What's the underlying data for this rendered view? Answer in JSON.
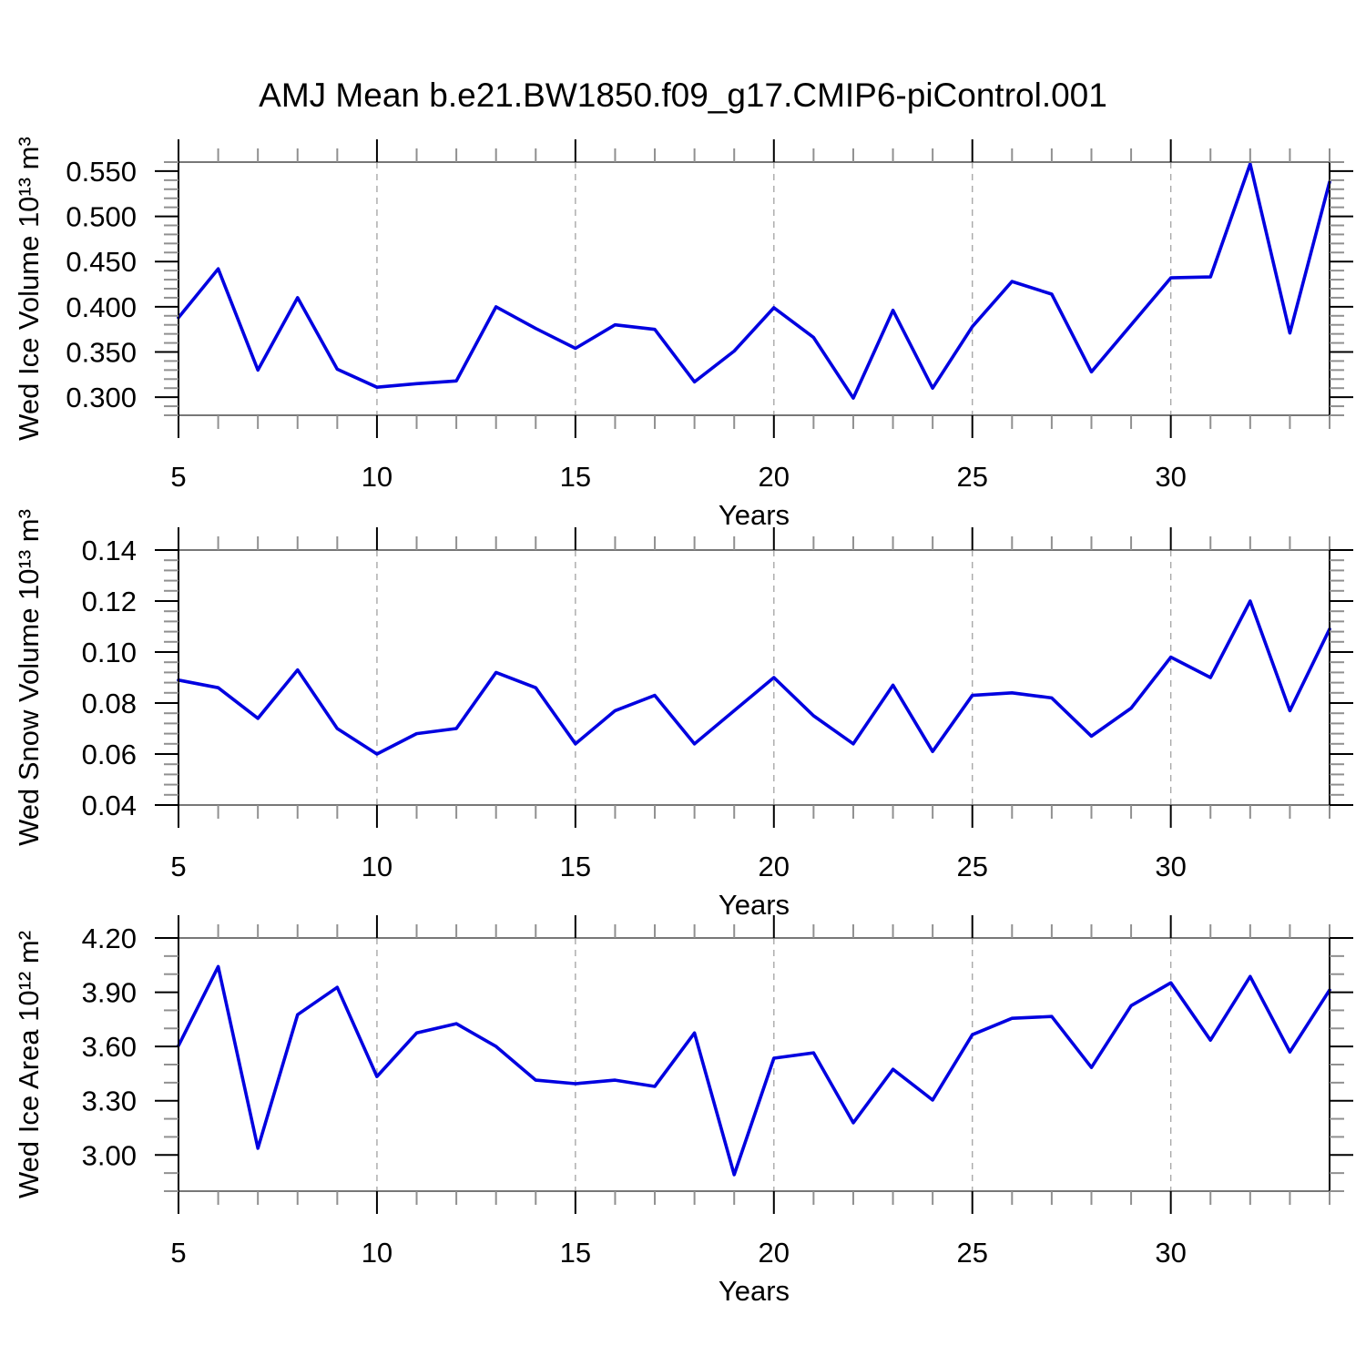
{
  "title": "AMJ Mean b.e21.BW1850.f09_g17.CMIP6-piControl.001",
  "style": {
    "line_color": "#0000e0",
    "grid_color": "#a8a8a8",
    "frame_color_topbottom": "#777777",
    "frame_color_leftright": "#000000",
    "major_tick_color": "#000000",
    "minor_tick_color": "#909090",
    "text_color": "#000000"
  },
  "chart_data": [
    {
      "type": "line",
      "panel": "ice-volume",
      "xlabel": "Years",
      "ylabel": "Wed Ice Volume 10¹³ m³",
      "x": [
        5,
        6,
        7,
        8,
        9,
        10,
        11,
        12,
        13,
        14,
        15,
        16,
        17,
        18,
        19,
        20,
        21,
        22,
        23,
        24,
        25,
        26,
        27,
        28,
        29,
        30,
        31,
        32,
        33,
        34
      ],
      "values": [
        0.388,
        0.442,
        0.33,
        0.41,
        0.331,
        0.311,
        0.315,
        0.318,
        0.4,
        0.376,
        0.354,
        0.38,
        0.375,
        0.317,
        0.351,
        0.399,
        0.366,
        0.299,
        0.396,
        0.31,
        0.378,
        0.428,
        0.414,
        0.328,
        0.38,
        0.432,
        0.433,
        0.558,
        0.371,
        0.538
      ],
      "xlim": [
        5,
        34
      ],
      "ylim": [
        0.28,
        0.56
      ],
      "xticks": [
        5,
        10,
        15,
        20,
        25,
        30
      ],
      "xtick_labels": [
        "5",
        "10",
        "15",
        "20",
        "25",
        "30"
      ],
      "xminor_step": 1,
      "grid_x": [
        10,
        15,
        20,
        25,
        30
      ],
      "yticks": [
        0.3,
        0.35,
        0.4,
        0.45,
        0.5,
        0.55
      ],
      "ytick_labels": [
        "0.300",
        "0.350",
        "0.400",
        "0.450",
        "0.500",
        "0.550"
      ],
      "yminor_step": 0.01,
      "grid": "x-dashed"
    },
    {
      "type": "line",
      "panel": "snow-volume",
      "xlabel": "Years",
      "ylabel": "Wed Snow Volume 10¹³ m³",
      "x": [
        5,
        6,
        7,
        8,
        9,
        10,
        11,
        12,
        13,
        14,
        15,
        16,
        17,
        18,
        19,
        20,
        21,
        22,
        23,
        24,
        25,
        26,
        27,
        28,
        29,
        30,
        31,
        32,
        33,
        34
      ],
      "values": [
        0.089,
        0.086,
        0.074,
        0.093,
        0.07,
        0.06,
        0.068,
        0.07,
        0.092,
        0.086,
        0.064,
        0.077,
        0.083,
        0.064,
        0.077,
        0.09,
        0.075,
        0.064,
        0.087,
        0.061,
        0.083,
        0.084,
        0.082,
        0.067,
        0.078,
        0.098,
        0.09,
        0.12,
        0.077,
        0.109
      ],
      "xlim": [
        5,
        34
      ],
      "ylim": [
        0.04,
        0.14
      ],
      "xticks": [
        5,
        10,
        15,
        20,
        25,
        30
      ],
      "xtick_labels": [
        "5",
        "10",
        "15",
        "20",
        "25",
        "30"
      ],
      "xminor_step": 1,
      "grid_x": [
        10,
        15,
        20,
        25,
        30
      ],
      "yticks": [
        0.04,
        0.06,
        0.08,
        0.1,
        0.12,
        0.14
      ],
      "ytick_labels": [
        "0.04",
        "0.06",
        "0.08",
        "0.10",
        "0.12",
        "0.14"
      ],
      "yminor_step": 0.004,
      "grid": "x-dashed"
    },
    {
      "type": "line",
      "panel": "ice-area",
      "xlabel": "Years",
      "ylabel": "Wed Ice Area 10¹² m²",
      "x": [
        5,
        6,
        7,
        8,
        9,
        10,
        11,
        12,
        13,
        14,
        15,
        16,
        17,
        18,
        19,
        20,
        21,
        22,
        23,
        24,
        25,
        26,
        27,
        28,
        29,
        30,
        31,
        32,
        33,
        34
      ],
      "values": [
        3.605,
        4.042,
        3.037,
        3.776,
        3.927,
        3.434,
        3.675,
        3.726,
        3.6,
        3.414,
        3.394,
        3.414,
        3.379,
        3.675,
        2.891,
        3.535,
        3.565,
        3.178,
        3.474,
        3.304,
        3.665,
        3.756,
        3.766,
        3.484,
        3.826,
        3.952,
        3.635,
        3.987,
        3.57,
        3.912
      ],
      "xlim": [
        5,
        34
      ],
      "ylim": [
        2.8,
        4.2
      ],
      "xticks": [
        5,
        10,
        15,
        20,
        25,
        30
      ],
      "xtick_labels": [
        "5",
        "10",
        "15",
        "20",
        "25",
        "30"
      ],
      "xminor_step": 1,
      "grid_x": [
        10,
        15,
        20,
        25,
        30
      ],
      "yticks": [
        3.0,
        3.3,
        3.6,
        3.9,
        4.2
      ],
      "ytick_labels": [
        "3.00",
        "3.30",
        "3.60",
        "3.90",
        "4.20"
      ],
      "yminor_step": 0.1,
      "grid": "x-dashed"
    }
  ]
}
